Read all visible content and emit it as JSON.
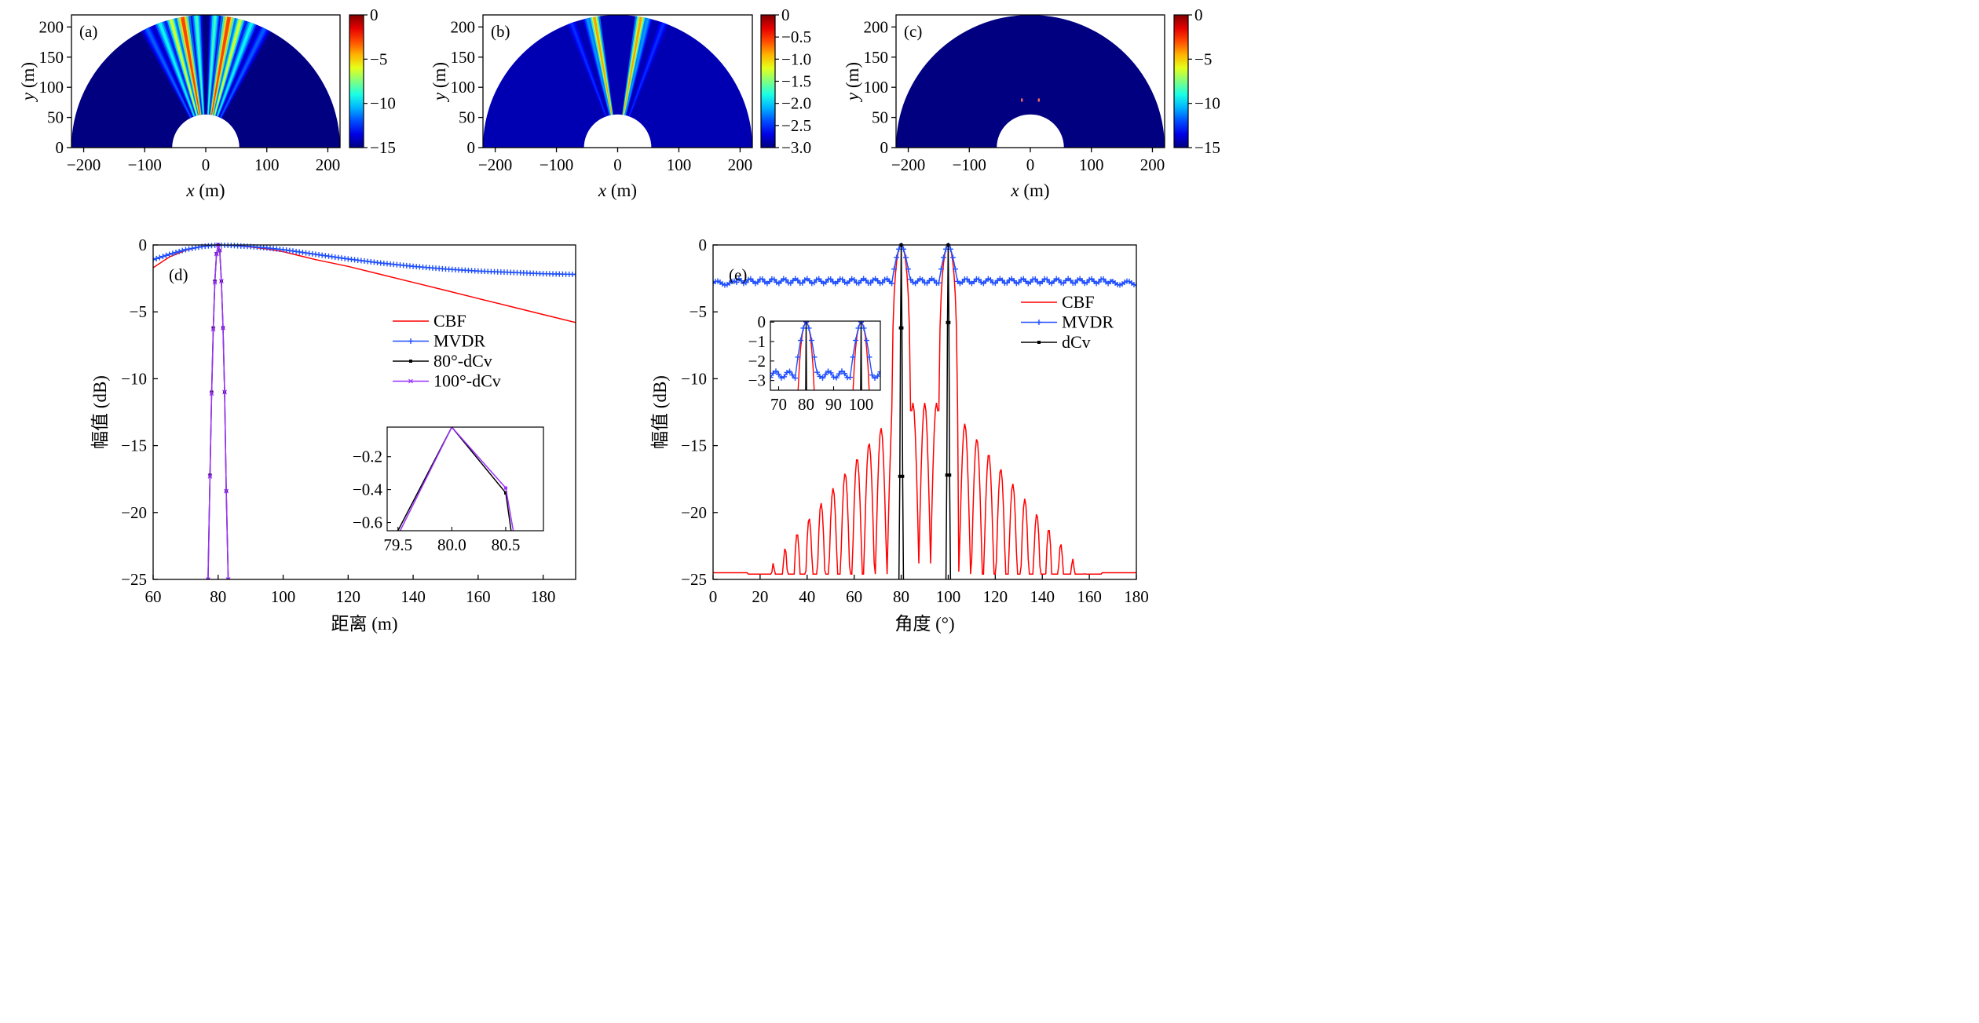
{
  "chart_data": [
    {
      "id": "a",
      "type": "heatmap",
      "panel_label": "(a)",
      "xlabel_var": "x",
      "xlabel_unit": " (m)",
      "ylabel_var": "y",
      "ylabel_unit": " (m)",
      "xlim": [
        -220,
        220
      ],
      "ylim": [
        0,
        220
      ],
      "xticks": [
        -200,
        -100,
        0,
        100,
        200
      ],
      "yticks": [
        0,
        50,
        100,
        150,
        200
      ],
      "rmin": 55,
      "rmax": 220,
      "colorbar": {
        "min": -15,
        "max": 0,
        "ticks": [
          0,
          -5,
          -10,
          -15
        ]
      },
      "background_level": -15,
      "beams": [
        {
          "angle": 80,
          "level": 0,
          "width": 3.5
        },
        {
          "angle": 100,
          "level": 0,
          "width": 3.5
        },
        {
          "angle": 75,
          "level": -4,
          "width": 2.5
        },
        {
          "angle": 105,
          "level": -4,
          "width": 2.5
        },
        {
          "angle": 86,
          "level": -7,
          "width": 2.5
        },
        {
          "angle": 94,
          "level": -7,
          "width": 2.5
        },
        {
          "angle": 70,
          "level": -8,
          "width": 3
        },
        {
          "angle": 110,
          "level": -8,
          "width": 3
        },
        {
          "angle": 64,
          "level": -11,
          "width": 3
        },
        {
          "angle": 116,
          "level": -11,
          "width": 3
        }
      ]
    },
    {
      "id": "b",
      "type": "heatmap",
      "panel_label": "(b)",
      "xlabel_var": "x",
      "xlabel_unit": " (m)",
      "ylabel_var": "y",
      "ylabel_unit": " (m)",
      "xlim": [
        -220,
        220
      ],
      "ylim": [
        0,
        220
      ],
      "xticks": [
        -200,
        -100,
        0,
        100,
        200
      ],
      "yticks": [
        0,
        50,
        100,
        150,
        200
      ],
      "rmin": 55,
      "rmax": 220,
      "colorbar": {
        "min": -3.0,
        "max": 0,
        "ticks": [
          0,
          -0.5,
          -1.0,
          -1.5,
          -2.0,
          -2.5,
          -3.0
        ]
      },
      "background_level": -2.85,
      "beams": [
        {
          "angle": 80,
          "level": -0.4,
          "width": 2.5
        },
        {
          "angle": 100,
          "level": -0.4,
          "width": 2.5
        },
        {
          "angle": 77,
          "level": -2.0,
          "width": 2
        },
        {
          "angle": 103,
          "level": -2.0,
          "width": 2
        },
        {
          "angle": 70,
          "level": -2.4,
          "width": 2
        },
        {
          "angle": 110,
          "level": -2.4,
          "width": 2
        }
      ]
    },
    {
      "id": "c",
      "type": "heatmap",
      "panel_label": "(c)",
      "xlabel_var": "x",
      "xlabel_unit": " (m)",
      "ylabel_var": "y",
      "ylabel_unit": " (m)",
      "xlim": [
        -220,
        220
      ],
      "ylim": [
        0,
        220
      ],
      "xticks": [
        -200,
        -100,
        0,
        100,
        200
      ],
      "yticks": [
        0,
        50,
        100,
        150,
        200
      ],
      "rmin": 55,
      "rmax": 220,
      "colorbar": {
        "min": -15,
        "max": 0,
        "ticks": [
          0,
          -5,
          -10,
          -15
        ]
      },
      "background_level": -15,
      "targets": [
        {
          "x": -13.9,
          "y": 78.8
        },
        {
          "x": 13.9,
          "y": 78.8
        }
      ]
    },
    {
      "id": "d",
      "type": "line",
      "panel_label": "(d)",
      "xlabel": "距离 (m)",
      "ylabel": "幅值 (dB)",
      "xlim": [
        60,
        190
      ],
      "ylim": [
        -25,
        0
      ],
      "xticks": [
        60,
        80,
        100,
        120,
        140,
        160,
        180
      ],
      "yticks": [
        0,
        -5,
        -10,
        -15,
        -20,
        -25
      ],
      "legend": "center-right",
      "series": [
        {
          "name": "CBF",
          "color": "#ff0000",
          "marker": "none",
          "x": [
            60,
            65,
            70,
            75,
            80,
            85,
            90,
            95,
            100,
            110,
            120,
            130,
            140,
            150,
            160,
            170,
            180,
            190
          ],
          "y": [
            -1.7,
            -0.9,
            -0.4,
            -0.1,
            0,
            -0.05,
            -0.15,
            -0.3,
            -0.5,
            -1.1,
            -1.6,
            -2.2,
            -2.8,
            -3.4,
            -4.0,
            -4.6,
            -5.2,
            -5.8
          ]
        },
        {
          "name": "MVDR",
          "color": "#1f4fff",
          "marker": "plus",
          "x": [
            60,
            65,
            70,
            75,
            80,
            85,
            90,
            95,
            100,
            110,
            120,
            130,
            140,
            150,
            160,
            170,
            180,
            190
          ],
          "y": [
            -1.1,
            -0.7,
            -0.35,
            -0.12,
            0,
            -0.05,
            -0.12,
            -0.22,
            -0.35,
            -0.7,
            -1.05,
            -1.35,
            -1.6,
            -1.8,
            -1.95,
            -2.05,
            -2.15,
            -2.2
          ]
        },
        {
          "name": "80°-dCv",
          "color": "#000000",
          "marker": "square",
          "x": [
            76.9,
            77.5,
            78.0,
            78.5,
            79.0,
            79.5,
            80.0,
            80.5,
            81.0,
            81.5,
            82.0,
            82.5,
            83.1
          ],
          "y": [
            -25,
            -17.2,
            -11.0,
            -6.2,
            -2.7,
            -0.65,
            0,
            -0.42,
            -2.7,
            -6.2,
            -11.0,
            -18.4,
            -25
          ]
        },
        {
          "name": "100°-dCv",
          "color": "#9b30ff",
          "marker": "x",
          "x": [
            76.9,
            77.5,
            78.0,
            78.5,
            79.0,
            79.5,
            80.0,
            80.5,
            81.0,
            81.5,
            82.0,
            82.5,
            83.1
          ],
          "y": [
            -25,
            -17.3,
            -11.1,
            -6.3,
            -2.8,
            -0.68,
            0,
            -0.39,
            -2.7,
            -6.2,
            -11.0,
            -18.4,
            -25
          ]
        }
      ],
      "inset": {
        "xlim": [
          79.4,
          80.85
        ],
        "ylim": [
          -0.65,
          -0.02
        ],
        "xticks": [
          79.5,
          80.0,
          80.5
        ],
        "xticklabels": [
          "79.5",
          "80.0",
          "80.5"
        ],
        "yticks": [
          -0.2,
          -0.4,
          -0.6
        ],
        "yticklabels": [
          "−0.2",
          "−0.4",
          "−0.6"
        ],
        "series": [
          {
            "name": "80°-dCv",
            "color": "#000000",
            "x": [
              79.5,
              80.0,
              80.5,
              80.55
            ],
            "y": [
              -0.65,
              -0.02,
              -0.42,
              -0.65
            ]
          },
          {
            "name": "100°-dCv",
            "color": "#9b30ff",
            "x": [
              79.52,
              80.0,
              80.5,
              80.57
            ],
            "y": [
              -0.65,
              -0.02,
              -0.39,
              -0.65
            ]
          }
        ]
      }
    },
    {
      "id": "e",
      "type": "line",
      "panel_label": "(e)",
      "xlabel": "角度 (°)",
      "ylabel": "幅值 (dB)",
      "xlim": [
        0,
        180
      ],
      "ylim": [
        -25,
        0
      ],
      "xticks": [
        0,
        20,
        40,
        60,
        80,
        100,
        120,
        140,
        160,
        180
      ],
      "yticks": [
        0,
        -5,
        -10,
        -15,
        -20,
        -25
      ],
      "legend": "top-right",
      "series": [
        {
          "name": "CBF",
          "color": "#ff0000",
          "marker": "none",
          "model": "sidelobes",
          "main_lobes": [
            80,
            100
          ]
        },
        {
          "name": "MVDR",
          "color": "#1f4fff",
          "marker": "plus",
          "model": "flat-peaks",
          "base": -2.85,
          "peaks": [
            80,
            100
          ]
        },
        {
          "name": "dCv",
          "color": "#000000",
          "marker": "square",
          "model": "narrow-peaks",
          "peaks": [
            80,
            100
          ]
        }
      ],
      "inset": {
        "xlim": [
          67,
          107
        ],
        "ylim": [
          -3.5,
          0.05
        ],
        "xticks": [
          70,
          80,
          90,
          100
        ],
        "xticklabels": [
          "70",
          "80",
          "90",
          "100"
        ],
        "yticks": [
          0,
          -1,
          -2,
          -3
        ],
        "yticklabels": [
          "0",
          "−1",
          "−2",
          "−3"
        ]
      }
    }
  ]
}
